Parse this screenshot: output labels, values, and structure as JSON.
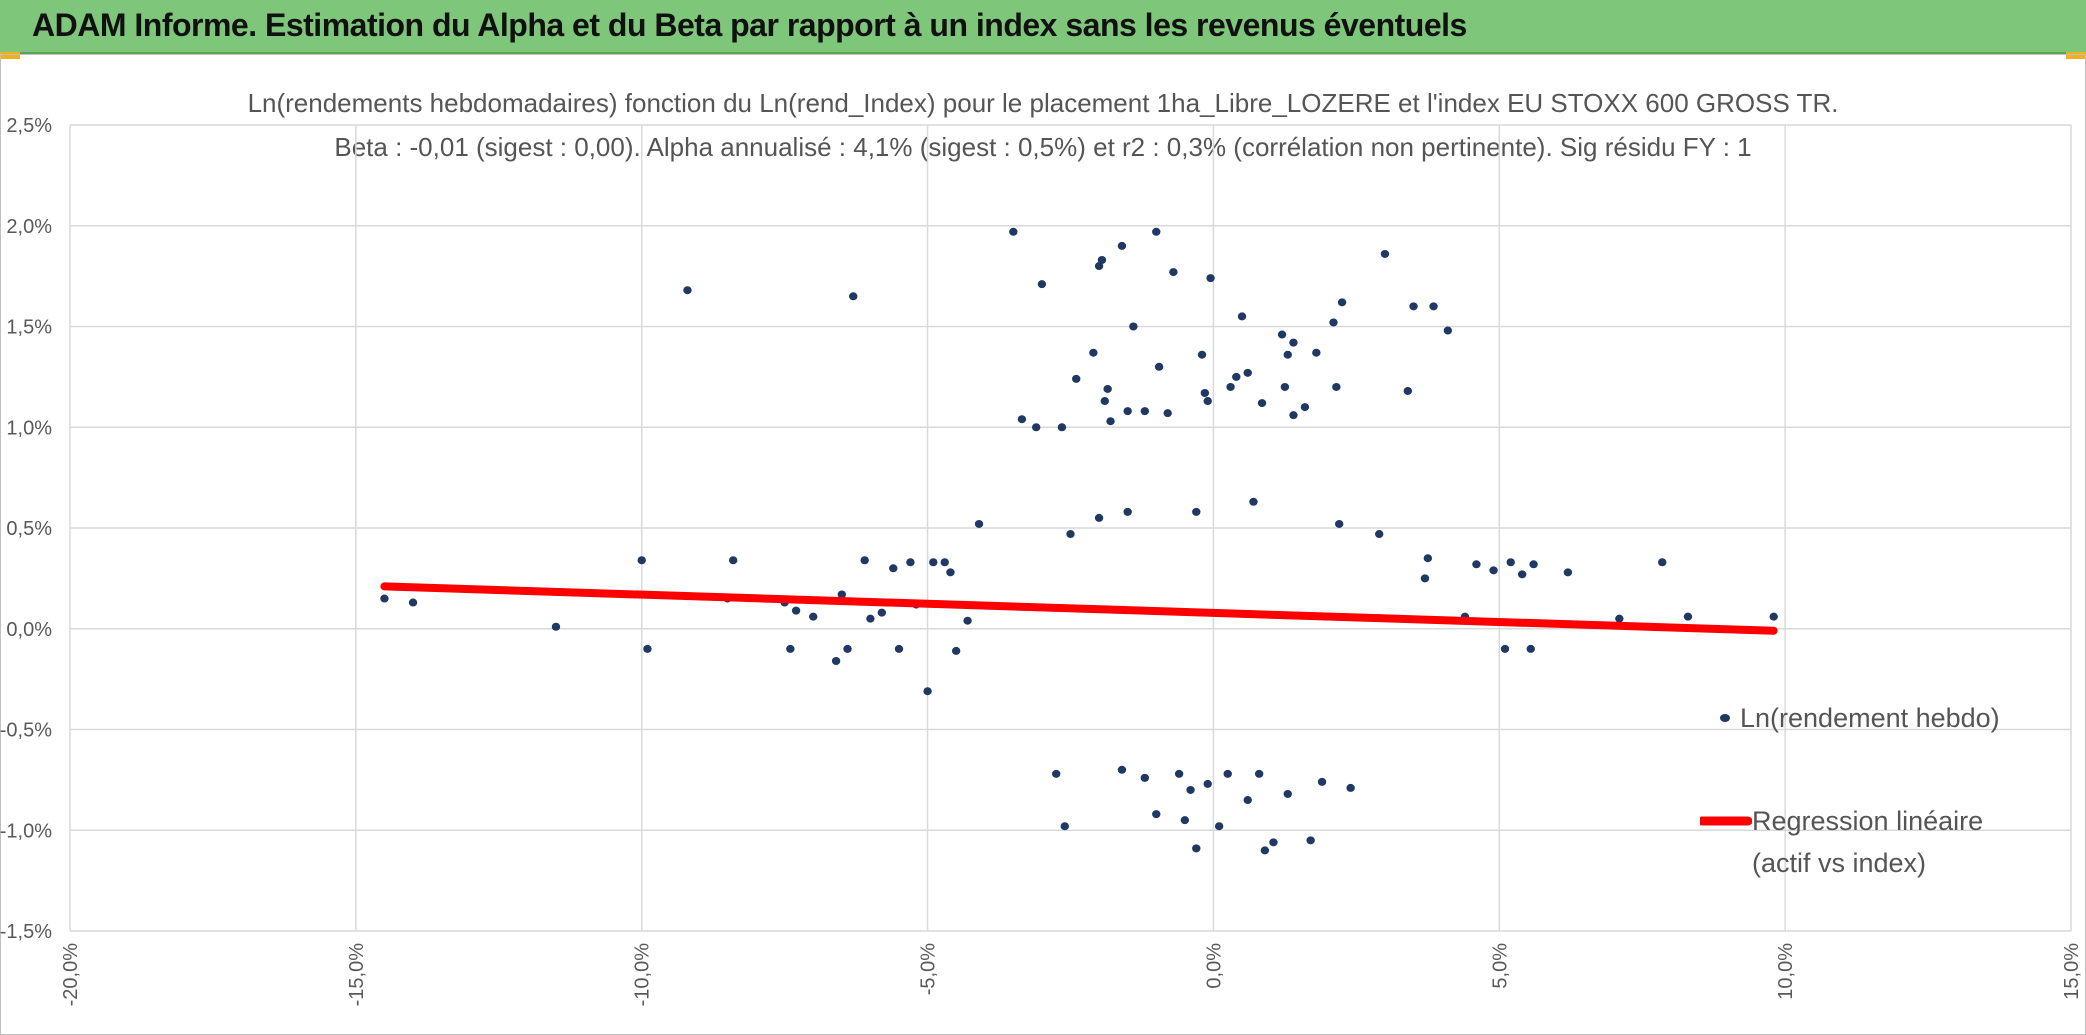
{
  "header": {
    "title": "ADAM Informe. Estimation du Alpha et du Beta par rapport à un index sans les revenus éventuels"
  },
  "colors": {
    "header_bg": "#7dc67a",
    "accent": "#f0b21c",
    "points": "#203864",
    "regression": "#ff0000",
    "grid": "#d9d9d9",
    "text": "#555555"
  },
  "chart_data": {
    "type": "scatter",
    "title": "Ln(rendements hebdomadaires) fonction du Ln(rend_Index) pour le placement 1ha_Libre_LOZERE et l'index EU STOXX 600 GROSS TR.",
    "subtitle": "Beta : -0,01 (sigest : 0,00). Alpha annualisé : 4,1% (sigest : 0,5%) et r2 : 0,3% (corrélation non pertinente). Sig résidu FY : 1",
    "xlabel": "",
    "ylabel": "",
    "xlim": [
      -20,
      15
    ],
    "ylim": [
      -1.5,
      2.5
    ],
    "x_ticks": [
      -20,
      -15,
      -10,
      -5,
      0,
      5,
      10,
      15
    ],
    "y_ticks": [
      -1.5,
      -1.0,
      -0.5,
      0.0,
      0.5,
      1.0,
      1.5,
      2.0,
      2.5
    ],
    "x_tick_labels": [
      "-20,0%",
      "-15,0%",
      "-10,0%",
      "-5,0%",
      "0,0%",
      "5,0%",
      "10,0%",
      "15,0%"
    ],
    "y_tick_labels": [
      "-1,5%",
      "-1,0%",
      "-0,5%",
      "0,0%",
      "0,5%",
      "1,0%",
      "1,5%",
      "2,0%",
      "2,5%"
    ],
    "grid": true,
    "legend_position": "right",
    "series": [
      {
        "name": "Ln(rendement hebdo)",
        "kind": "scatter",
        "color": "#203864",
        "points": [
          [
            -14.5,
            0.15
          ],
          [
            -14.0,
            0.13
          ],
          [
            -11.5,
            0.01
          ],
          [
            -10.0,
            0.34
          ],
          [
            -9.9,
            -0.1
          ],
          [
            -9.2,
            1.68
          ],
          [
            -8.4,
            0.34
          ],
          [
            -8.5,
            0.15
          ],
          [
            -7.5,
            0.13
          ],
          [
            -7.4,
            -0.1
          ],
          [
            -7.3,
            0.09
          ],
          [
            -7.0,
            0.06
          ],
          [
            -6.6,
            -0.16
          ],
          [
            -6.5,
            0.17
          ],
          [
            -6.4,
            -0.1
          ],
          [
            -6.3,
            1.65
          ],
          [
            -6.1,
            0.34
          ],
          [
            -6.0,
            0.05
          ],
          [
            -5.8,
            0.08
          ],
          [
            -5.6,
            0.3
          ],
          [
            -5.5,
            -0.1
          ],
          [
            -5.3,
            0.33
          ],
          [
            -5.2,
            0.12
          ],
          [
            -5.0,
            -0.31
          ],
          [
            -4.9,
            0.33
          ],
          [
            -4.7,
            0.33
          ],
          [
            -4.6,
            0.28
          ],
          [
            -4.5,
            -0.11
          ],
          [
            -4.3,
            0.04
          ],
          [
            -4.1,
            0.52
          ],
          [
            -3.5,
            1.97
          ],
          [
            -3.0,
            1.71
          ],
          [
            -3.35,
            1.04
          ],
          [
            -3.1,
            1.0
          ],
          [
            -2.65,
            1.0
          ],
          [
            -2.75,
            -0.72
          ],
          [
            -2.6,
            -0.98
          ],
          [
            -2.4,
            1.24
          ],
          [
            -2.1,
            1.37
          ],
          [
            -2.0,
            1.8
          ],
          [
            -1.95,
            1.83
          ],
          [
            -1.6,
            1.9
          ],
          [
            -1.4,
            1.5
          ],
          [
            -1.0,
            1.97
          ],
          [
            -0.7,
            1.77
          ],
          [
            -0.8,
            1.07
          ],
          [
            -1.5,
            1.08
          ],
          [
            -1.2,
            1.08
          ],
          [
            -0.95,
            1.3
          ],
          [
            -1.8,
            1.03
          ],
          [
            -1.9,
            1.13
          ],
          [
            -1.85,
            1.19
          ],
          [
            -0.2,
            1.36
          ],
          [
            -0.1,
            1.13
          ],
          [
            -0.05,
            1.74
          ],
          [
            -0.15,
            1.17
          ],
          [
            0.5,
            1.55
          ],
          [
            0.4,
            1.25
          ],
          [
            0.6,
            1.27
          ],
          [
            0.85,
            1.12
          ],
          [
            1.2,
            1.46
          ],
          [
            1.3,
            1.36
          ],
          [
            1.4,
            1.42
          ],
          [
            1.25,
            1.2
          ],
          [
            1.4,
            1.06
          ],
          [
            1.8,
            1.37
          ],
          [
            2.1,
            1.52
          ],
          [
            2.25,
            1.62
          ],
          [
            2.15,
            1.2
          ],
          [
            3.0,
            1.86
          ],
          [
            3.4,
            1.18
          ],
          [
            3.5,
            1.6
          ],
          [
            3.85,
            1.6
          ],
          [
            4.1,
            1.48
          ],
          [
            1.6,
            1.1
          ],
          [
            0.3,
            1.2
          ],
          [
            -0.6,
            -0.72
          ],
          [
            -0.4,
            -0.8
          ],
          [
            -0.1,
            -0.77
          ],
          [
            0.25,
            -0.72
          ],
          [
            -1.2,
            -0.74
          ],
          [
            -1.0,
            -0.92
          ],
          [
            -0.3,
            -1.09
          ],
          [
            0.6,
            -0.85
          ],
          [
            0.9,
            -1.1
          ],
          [
            1.05,
            -1.06
          ],
          [
            1.7,
            -1.05
          ],
          [
            1.9,
            -0.76
          ],
          [
            2.4,
            -0.79
          ],
          [
            0.8,
            -0.72
          ],
          [
            -1.6,
            -0.7
          ],
          [
            -0.5,
            -0.95
          ],
          [
            0.1,
            -0.98
          ],
          [
            1.3,
            -0.82
          ],
          [
            7.85,
            0.33
          ],
          [
            7.1,
            0.05
          ],
          [
            8.3,
            0.06
          ],
          [
            9.8,
            0.06
          ],
          [
            6.2,
            0.28
          ],
          [
            5.6,
            0.32
          ],
          [
            5.2,
            0.33
          ],
          [
            5.4,
            0.27
          ],
          [
            5.1,
            -0.1
          ],
          [
            5.55,
            -0.1
          ],
          [
            4.9,
            0.29
          ],
          [
            4.6,
            0.32
          ],
          [
            4.4,
            0.06
          ],
          [
            3.75,
            0.35
          ],
          [
            3.7,
            0.25
          ],
          [
            2.9,
            0.47
          ],
          [
            2.2,
            0.52
          ],
          [
            0.7,
            0.63
          ],
          [
            -0.3,
            0.58
          ],
          [
            -1.5,
            0.58
          ],
          [
            -2.0,
            0.55
          ],
          [
            -2.5,
            0.47
          ]
        ]
      },
      {
        "name": "Regression linéaire (actif vs index)",
        "legend_lines": [
          "Regression linéaire",
          "(actif vs index)"
        ],
        "kind": "line",
        "color": "#ff0000",
        "points": [
          [
            -14.5,
            0.21
          ],
          [
            9.8,
            -0.01
          ]
        ]
      }
    ]
  }
}
